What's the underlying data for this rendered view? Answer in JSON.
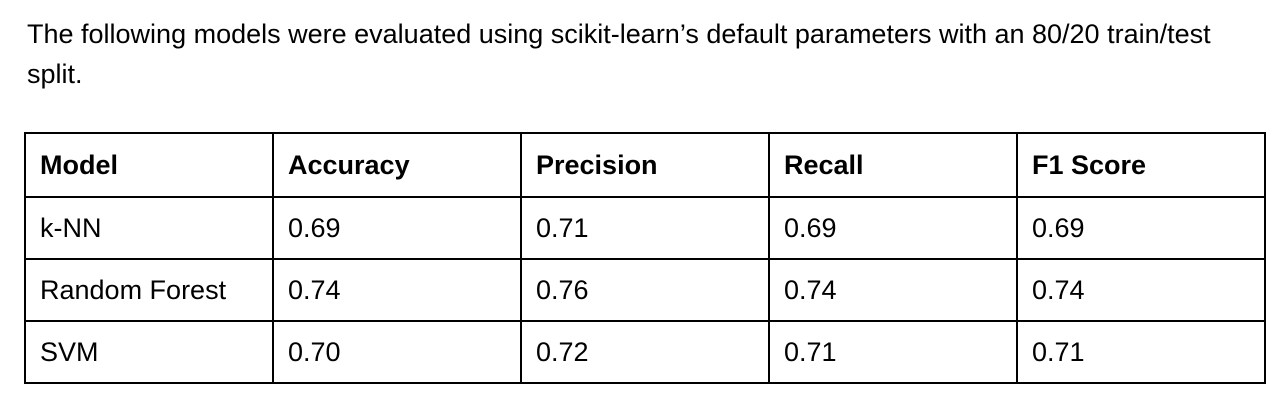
{
  "intro_text": "The following models were evaluated using scikit-learn’s default parameters with an 80/20 train/test split.",
  "table": {
    "headers": [
      "Model",
      "Accuracy",
      "Precision",
      "Recall",
      "F1 Score"
    ],
    "rows": [
      [
        "k-NN",
        "0.69",
        "0.71",
        "0.69",
        "0.69"
      ],
      [
        "Random Forest",
        "0.74",
        "0.76",
        "0.74",
        "0.74"
      ],
      [
        "SVM",
        "0.70",
        "0.72",
        "0.71",
        "0.71"
      ]
    ]
  }
}
